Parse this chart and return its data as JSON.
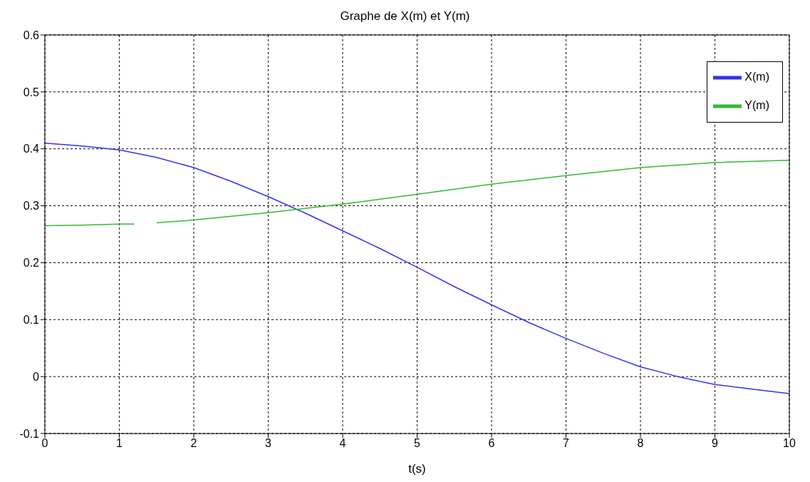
{
  "chart_data": {
    "type": "line",
    "title": "Graphe de X(m) et Y(m)",
    "xlabel": "t(s)",
    "series": [
      {
        "name": "X(m)",
        "color": "#3333ee",
        "x": [
          0,
          0.5,
          1,
          1.5,
          2,
          2.5,
          3,
          3.5,
          4,
          4.5,
          5,
          5.5,
          6,
          6.5,
          7,
          7.5,
          8,
          8.5,
          9,
          9.5,
          10
        ],
        "values": [
          0.41,
          0.405,
          0.398,
          0.385,
          0.367,
          0.343,
          0.316,
          0.287,
          0.256,
          0.225,
          0.192,
          0.158,
          0.126,
          0.095,
          0.067,
          0.041,
          0.017,
          0.0,
          -0.014,
          -0.022,
          -0.03
        ]
      },
      {
        "name": "Y(m)",
        "color": "#33bb33",
        "x": [
          0,
          0.5,
          1,
          1.2,
          1.35,
          1.5,
          2,
          3,
          4,
          5,
          6,
          7,
          8,
          9,
          10
        ],
        "values": [
          0.265,
          0.266,
          0.268,
          0.268,
          null,
          0.27,
          0.275,
          0.288,
          0.303,
          0.32,
          0.338,
          0.353,
          0.367,
          0.376,
          0.38
        ]
      }
    ],
    "xlim": [
      0,
      10
    ],
    "xticks": [
      0,
      1,
      2,
      3,
      4,
      5,
      6,
      7,
      8,
      9,
      10
    ],
    "ylim": [
      -0.1,
      0.6
    ],
    "yticks": [
      -0.1,
      0,
      0.1,
      0.2,
      0.3,
      0.4,
      0.5,
      0.6
    ],
    "grid": true,
    "legend": "top right",
    "marker": "none",
    "line_style": "solid"
  }
}
